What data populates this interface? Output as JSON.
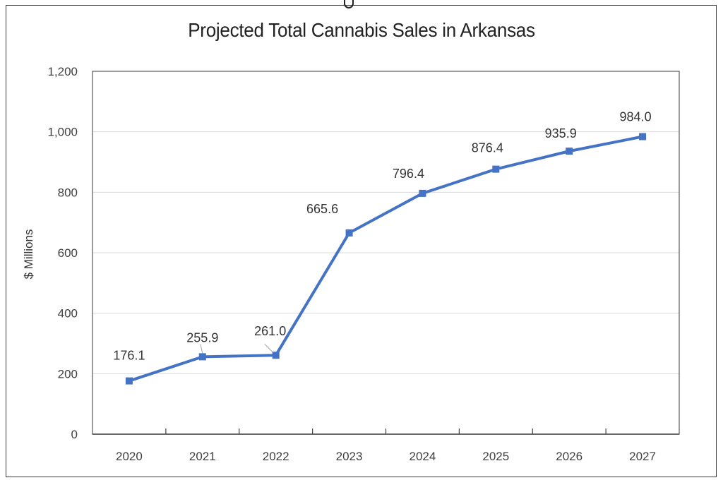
{
  "chart_data": {
    "type": "line",
    "title": "Projected Total Cannabis Sales in Arkansas",
    "xlabel": "",
    "ylabel": "$ Millions",
    "categories": [
      "2020",
      "2021",
      "2022",
      "2023",
      "2024",
      "2025",
      "2026",
      "2027"
    ],
    "series": [
      {
        "name": "Projected Total Cannabis Sales",
        "values": [
          176.1,
          255.9,
          261.0,
          665.6,
          796.4,
          876.4,
          935.9,
          984.0
        ],
        "data_labels": [
          "176.1",
          "255.9",
          "261.0",
          "665.6",
          "796.4",
          "876.4",
          "935.9",
          "984.0"
        ],
        "color": "#4472C4",
        "marker": "square"
      }
    ],
    "ylim": [
      0,
      1200
    ],
    "yticks": [
      0,
      200,
      400,
      600,
      800,
      1000,
      1200
    ],
    "ytick_labels": [
      "0",
      "200",
      "400",
      "600",
      "800",
      "1,000",
      "1,200"
    ],
    "grid": true,
    "grid_color": "#d9d9d9",
    "legend": "none"
  }
}
